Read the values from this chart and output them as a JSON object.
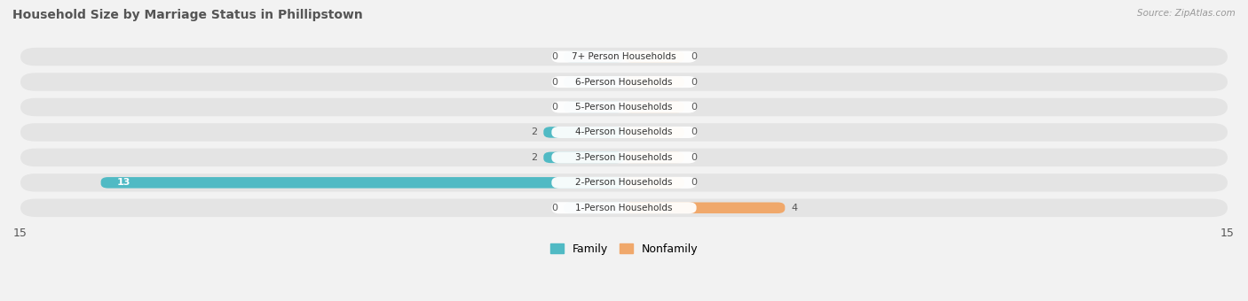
{
  "title": "Household Size by Marriage Status in Phillipstown",
  "source": "Source: ZipAtlas.com",
  "categories": [
    "7+ Person Households",
    "6-Person Households",
    "5-Person Households",
    "4-Person Households",
    "3-Person Households",
    "2-Person Households",
    "1-Person Households"
  ],
  "family_values": [
    0,
    0,
    0,
    2,
    2,
    13,
    0
  ],
  "nonfamily_values": [
    0,
    0,
    0,
    0,
    0,
    0,
    4
  ],
  "family_color": "#50bac4",
  "nonfamily_color": "#f0a86b",
  "family_color_light": "#a8d9dd",
  "nonfamily_color_light": "#f5ca9e",
  "xlim": 15,
  "bg_color": "#f2f2f2",
  "row_bg_color": "#e4e4e4",
  "label_bg_color": "#ffffff",
  "zero_bar_width": 1.5
}
